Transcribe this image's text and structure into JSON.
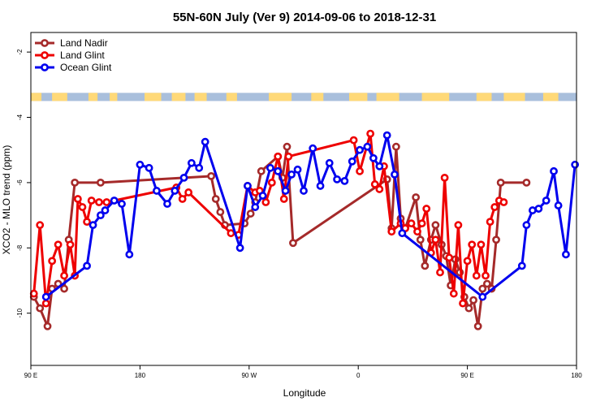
{
  "chart_data": {
    "type": "line",
    "title": "55N-60N July (Ver 9)   2014-09-06 to 2018-12-31",
    "xlabel": "Longitude",
    "ylabel": "XCO2 - MLO trend (ppm)",
    "xlim": [
      90,
      450
    ],
    "ylim": [
      -11.6,
      -1.4
    ],
    "x_ticks": [
      {
        "value": 90,
        "label": "90 E"
      },
      {
        "value": 162,
        "label": "180"
      },
      {
        "value": 234,
        "label": "90 W"
      },
      {
        "value": 306,
        "label": "0"
      },
      {
        "value": 378,
        "label": "90 E"
      },
      {
        "value": 450,
        "label": "180"
      }
    ],
    "y_ticks": [
      {
        "value": -2,
        "label": "-2"
      },
      {
        "value": -4,
        "label": "-4"
      },
      {
        "value": -6,
        "label": "-6"
      },
      {
        "value": -8,
        "label": "-8"
      },
      {
        "value": -10,
        "label": "-10"
      }
    ],
    "grid": false,
    "legend_position": "top-left",
    "land_ocean_band": {
      "y_range": [
        -3.5,
        -3.25
      ],
      "land_color": "#ffd978",
      "ocean_color": "#a9bfdc"
    },
    "series": [
      {
        "name": "Land Nadir",
        "color": "#a52a2a",
        "points": [
          [
            92,
            -9.5
          ],
          [
            96,
            -9.85
          ],
          [
            101,
            -10.4
          ],
          [
            104,
            -9.25
          ],
          [
            108,
            -9.1
          ],
          [
            112,
            -9.25
          ],
          [
            115,
            -7.75
          ],
          [
            119,
            -6.0
          ],
          [
            136,
            -6.0
          ],
          [
            209,
            -5.8
          ],
          [
            212,
            -6.5
          ],
          [
            215,
            -6.9
          ],
          [
            218,
            -7.3
          ],
          [
            231,
            -7.25
          ],
          [
            235,
            -6.95
          ],
          [
            238,
            -6.6
          ],
          [
            242,
            -5.65
          ],
          [
            253,
            -5.2
          ],
          [
            256,
            -5.85
          ],
          [
            259,
            -4.9
          ],
          [
            263,
            -7.85
          ],
          [
            325,
            -5.9
          ],
          [
            328,
            -7.4
          ],
          [
            331,
            -4.9
          ],
          [
            334,
            -7.1
          ],
          [
            337,
            -7.4
          ],
          [
            344,
            -6.45
          ],
          [
            347,
            -7.75
          ],
          [
            350,
            -8.55
          ],
          [
            354,
            -7.75
          ],
          [
            357,
            -7.3
          ],
          [
            361,
            -7.9
          ],
          [
            364,
            -8.25
          ],
          [
            367,
            -9.15
          ],
          [
            370,
            -8.35
          ],
          [
            373,
            -8.75
          ],
          [
            376,
            -9.5
          ],
          [
            379,
            -9.85
          ],
          [
            382,
            -9.6
          ],
          [
            385,
            -10.4
          ],
          [
            388,
            -9.25
          ],
          [
            391,
            -9.1
          ],
          [
            394,
            -9.25
          ],
          [
            397,
            -7.75
          ],
          [
            400,
            -6.0
          ],
          [
            417,
            -6.0
          ]
        ]
      },
      {
        "name": "Land Glint",
        "color": "#ee0000",
        "points": [
          [
            92,
            -9.4
          ],
          [
            96,
            -7.3
          ],
          [
            100,
            -9.7
          ],
          [
            104,
            -8.4
          ],
          [
            108,
            -7.9
          ],
          [
            112,
            -8.85
          ],
          [
            116,
            -7.9
          ],
          [
            119,
            -8.85
          ],
          [
            121,
            -6.5
          ],
          [
            124,
            -6.75
          ],
          [
            127,
            -7.2
          ],
          [
            130,
            -6.55
          ],
          [
            135,
            -6.6
          ],
          [
            140,
            -6.6
          ],
          [
            186,
            -6.15
          ],
          [
            190,
            -6.5
          ],
          [
            194,
            -6.3
          ],
          [
            222,
            -7.55
          ],
          [
            227,
            -7.6
          ],
          [
            233,
            -6.1
          ],
          [
            238,
            -6.3
          ],
          [
            241,
            -6.25
          ],
          [
            245,
            -6.6
          ],
          [
            249,
            -6.0
          ],
          [
            253,
            -5.2
          ],
          [
            257,
            -6.5
          ],
          [
            260,
            -5.2
          ],
          [
            303,
            -4.7
          ],
          [
            307,
            -5.65
          ],
          [
            314,
            -4.5
          ],
          [
            317,
            -6.05
          ],
          [
            320,
            -6.2
          ],
          [
            323,
            -5.5
          ],
          [
            328,
            -7.5
          ],
          [
            334,
            -7.25
          ],
          [
            337,
            -7.4
          ],
          [
            341,
            -7.25
          ],
          [
            345,
            -7.5
          ],
          [
            348,
            -7.25
          ],
          [
            351,
            -6.8
          ],
          [
            354,
            -8.15
          ],
          [
            357,
            -7.75
          ],
          [
            360,
            -8.75
          ],
          [
            363,
            -5.85
          ],
          [
            366,
            -8.3
          ],
          [
            369,
            -9.4
          ],
          [
            372,
            -7.3
          ],
          [
            375,
            -9.7
          ],
          [
            378,
            -8.4
          ],
          [
            381,
            -7.9
          ],
          [
            384,
            -8.85
          ],
          [
            387,
            -7.9
          ],
          [
            390,
            -8.85
          ],
          [
            393,
            -7.2
          ],
          [
            396,
            -6.75
          ],
          [
            399,
            -6.55
          ],
          [
            402,
            -6.6
          ]
        ]
      },
      {
        "name": "Ocean Glint",
        "color": "#0000ee",
        "points": [
          [
            100,
            -9.5
          ],
          [
            127,
            -8.55
          ],
          [
            131,
            -7.3
          ],
          [
            136,
            -7.0
          ],
          [
            139,
            -6.85
          ],
          [
            145,
            -6.55
          ],
          [
            150,
            -6.65
          ],
          [
            155,
            -8.2
          ],
          [
            162,
            -5.45
          ],
          [
            168,
            -5.55
          ],
          [
            173,
            -6.25
          ],
          [
            180,
            -6.65
          ],
          [
            185,
            -6.25
          ],
          [
            191,
            -5.85
          ],
          [
            196,
            -5.4
          ],
          [
            201,
            -5.55
          ],
          [
            205,
            -4.75
          ],
          [
            228,
            -8.0
          ],
          [
            233,
            -6.1
          ],
          [
            238,
            -6.75
          ],
          [
            243,
            -6.4
          ],
          [
            248,
            -5.55
          ],
          [
            253,
            -5.65
          ],
          [
            258,
            -6.25
          ],
          [
            262,
            -5.75
          ],
          [
            266,
            -5.6
          ],
          [
            270,
            -6.25
          ],
          [
            276,
            -4.95
          ],
          [
            281,
            -6.1
          ],
          [
            287,
            -5.4
          ],
          [
            292,
            -5.9
          ],
          [
            297,
            -5.95
          ],
          [
            302,
            -5.35
          ],
          [
            307,
            -5.0
          ],
          [
            312,
            -4.9
          ],
          [
            316,
            -5.25
          ],
          [
            320,
            -5.5
          ],
          [
            325,
            -4.55
          ],
          [
            330,
            -5.75
          ],
          [
            335,
            -7.55
          ],
          [
            388,
            -9.5
          ],
          [
            414,
            -8.55
          ],
          [
            417,
            -7.3
          ],
          [
            421,
            -6.85
          ],
          [
            425,
            -6.8
          ],
          [
            430,
            -6.55
          ],
          [
            435,
            -5.65
          ],
          [
            438,
            -6.7
          ],
          [
            443,
            -8.2
          ],
          [
            449,
            -5.45
          ]
        ]
      }
    ]
  }
}
